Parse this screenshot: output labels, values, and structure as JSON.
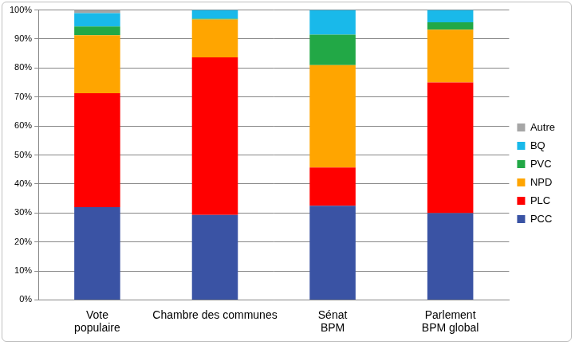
{
  "chart_data": {
    "type": "bar",
    "stacked": true,
    "grid": true,
    "legend": "right",
    "categories": [
      "Vote\npopulaire",
      "Chambre des communes",
      "Sénat\nBPM",
      "Parlement\nBPM global"
    ],
    "series": [
      {
        "name": "PCC",
        "color": "#3a53a4",
        "values": [
          32.0,
          29.3,
          32.5,
          29.9
        ]
      },
      {
        "name": "PLC",
        "color": "#ff0000",
        "values": [
          39.3,
          54.4,
          13.2,
          45.1
        ]
      },
      {
        "name": "NPD",
        "color": "#ffa500",
        "values": [
          20.0,
          13.0,
          35.3,
          18.2
        ]
      },
      {
        "name": "PVC",
        "color": "#22a846",
        "values": [
          3.0,
          0.3,
          10.5,
          2.6
        ]
      },
      {
        "name": "BQ",
        "color": "#19b9ea",
        "values": [
          4.6,
          3.0,
          8.5,
          4.2
        ]
      },
      {
        "name": "Autre",
        "color": "#a6a6a6",
        "values": [
          1.1,
          0,
          0,
          0
        ]
      }
    ],
    "ylim": [
      0,
      100
    ],
    "yticks": [
      {
        "value": 0,
        "label": "0%"
      },
      {
        "value": 10,
        "label": "10%"
      },
      {
        "value": 20,
        "label": "20%"
      },
      {
        "value": 30,
        "label": "30%"
      },
      {
        "value": 40,
        "label": "40%"
      },
      {
        "value": 50,
        "label": "50%"
      },
      {
        "value": 60,
        "label": "60%"
      },
      {
        "value": 70,
        "label": "70%"
      },
      {
        "value": 80,
        "label": "80%"
      },
      {
        "value": 90,
        "label": "90%"
      },
      {
        "value": 100,
        "label": "100%"
      }
    ]
  }
}
